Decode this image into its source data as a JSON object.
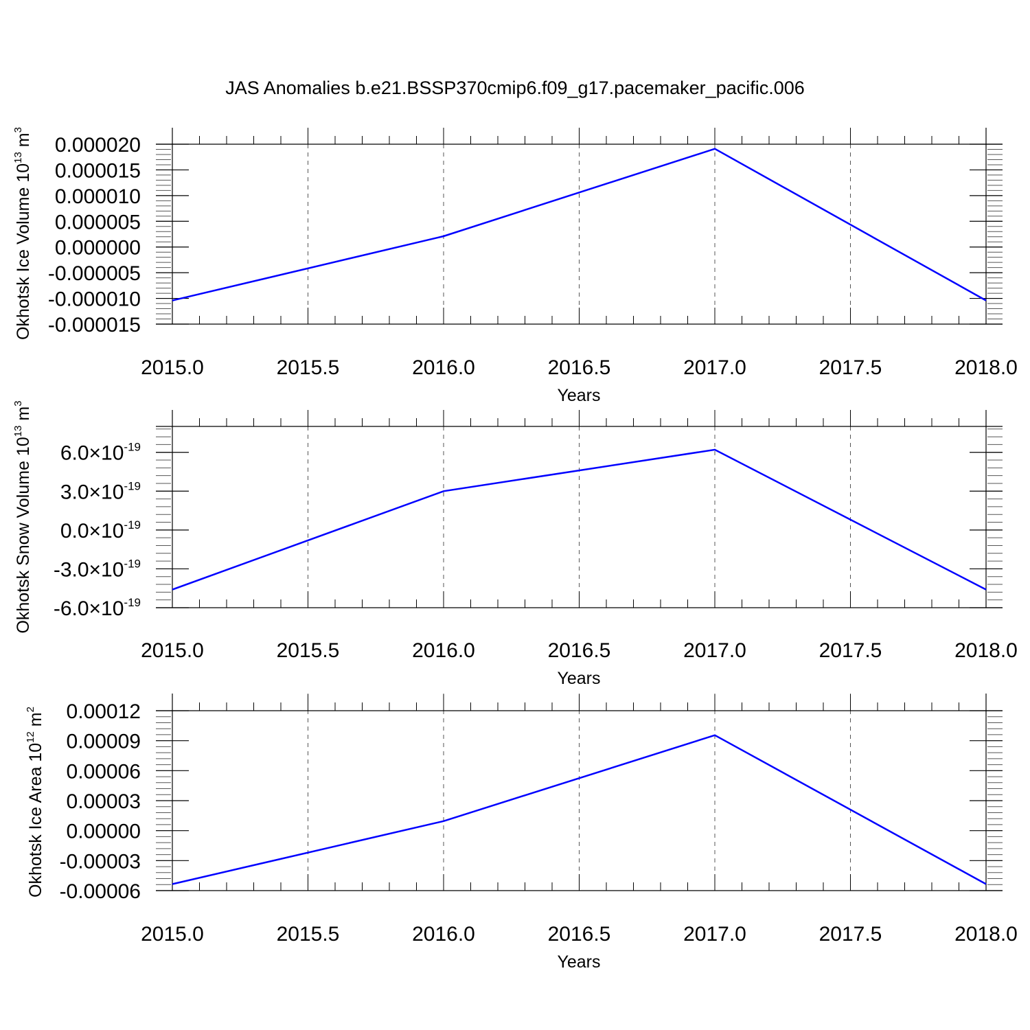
{
  "figure": {
    "title": "JAS Anomalies b.e21.BSSP370cmip6.f09_g17.pacemaker_pacific.006"
  },
  "chart_data": [
    {
      "type": "line",
      "title": "",
      "xlabel": "Years",
      "ylabel": "Okhotsk Ice Volume 10",
      "ylabel_exponent": "13",
      "ylabel_unit": " m",
      "ylabel_unit_power": "3",
      "x_ticks": [
        "2015.0",
        "2015.5",
        "2016.0",
        "2016.5",
        "2017.0",
        "2017.5",
        "2018.0"
      ],
      "y_ticks": [
        "0.000020",
        "0.000015",
        "0.000010",
        "0.000005",
        "0.000000",
        "-0.000005",
        "-0.000010",
        "-0.000015"
      ],
      "y_tick_values": [
        2e-05,
        1.5e-05,
        1e-05,
        5e-06,
        0.0,
        -5e-06,
        -1e-05,
        -1.5e-05
      ],
      "xlim": [
        2015.0,
        2018.0
      ],
      "ylim": [
        -1.5e-05,
        2e-05
      ],
      "grid": "vertical dashed at major x ticks",
      "series": [
        {
          "color": "#0000ff",
          "x": [
            2015,
            2016,
            2017,
            2018
          ],
          "y": [
            -1.04e-05,
            2.1e-06,
            1.91e-05,
            -1.04e-05
          ]
        }
      ]
    },
    {
      "type": "line",
      "title": "",
      "xlabel": "Years",
      "ylabel": "Okhotsk Snow Volume 10",
      "ylabel_exponent": "13",
      "ylabel_unit": " m",
      "ylabel_unit_power": "3",
      "x_ticks": [
        "2015.0",
        "2015.5",
        "2016.0",
        "2016.5",
        "2017.0",
        "2017.5",
        "2018.0"
      ],
      "y_ticks": [
        "6.0",
        "3.0",
        "0.0",
        "-3.0",
        "-6.0"
      ],
      "y_tick_values": [
        6e-19,
        3e-19,
        0.0,
        -3e-19,
        -6e-19
      ],
      "y_tick_multiplier": "×10",
      "y_tick_exponent": "-19",
      "xlim": [
        2015.0,
        2018.0
      ],
      "ylim": [
        -6e-19,
        8e-19
      ],
      "grid": "vertical dashed at major x ticks",
      "series": [
        {
          "color": "#0000ff",
          "x": [
            2015,
            2016,
            2017,
            2018
          ],
          "y": [
            -4.6e-19,
            3e-19,
            6.2e-19,
            -4.6e-19
          ]
        }
      ]
    },
    {
      "type": "line",
      "title": "",
      "xlabel": "Years",
      "ylabel": "Okhotsk Ice Area 10",
      "ylabel_exponent": "12",
      "ylabel_unit": " m",
      "ylabel_unit_power": "2",
      "x_ticks": [
        "2015.0",
        "2015.5",
        "2016.0",
        "2016.5",
        "2017.0",
        "2017.5",
        "2018.0"
      ],
      "y_ticks": [
        "0.00012",
        "0.00009",
        "0.00006",
        "0.00003",
        "0.00000",
        "-0.00003",
        "-0.00006"
      ],
      "y_tick_values": [
        0.00012,
        9e-05,
        6e-05,
        3e-05,
        0.0,
        -3e-05,
        -6e-05
      ],
      "xlim": [
        2015.0,
        2018.0
      ],
      "ylim": [
        -6e-05,
        0.00012
      ],
      "grid": "vertical dashed at major x ticks",
      "series": [
        {
          "color": "#0000ff",
          "x": [
            2015,
            2016,
            2017,
            2018
          ],
          "y": [
            -5.35e-05,
            9.5e-06,
            9.55e-05,
            -5.35e-05
          ]
        }
      ]
    }
  ]
}
